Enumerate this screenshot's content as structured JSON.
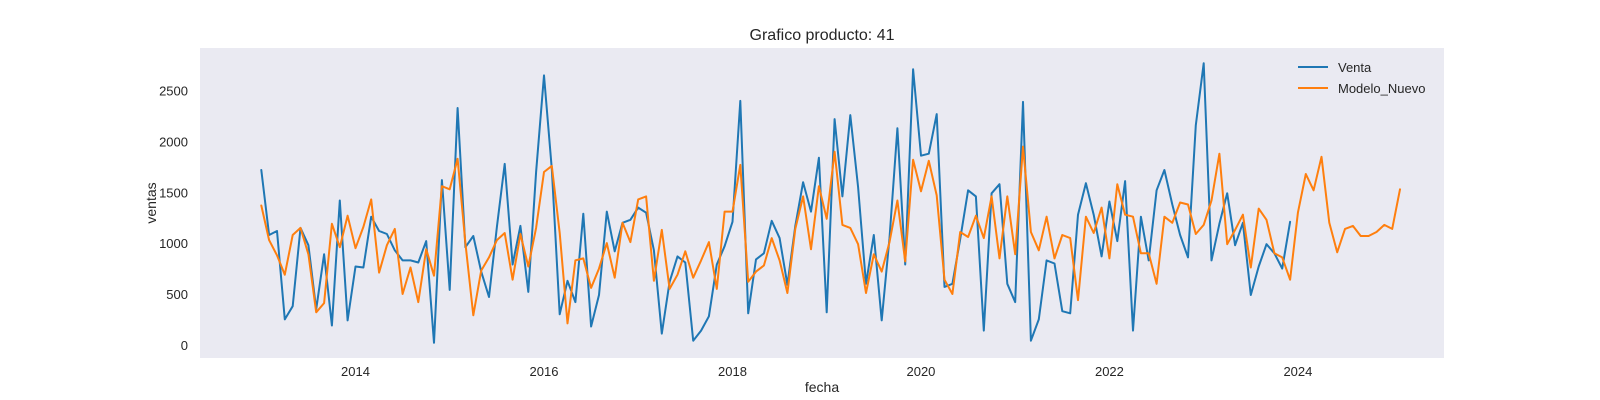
{
  "chart_data": {
    "type": "line",
    "title": "Grafico producto: 41",
    "xlabel": "fecha",
    "ylabel": "ventas",
    "xlim": [
      2012.35,
      2025.55
    ],
    "ylim": [
      -130,
      2920
    ],
    "xticks": [
      2014,
      2016,
      2018,
      2020,
      2022,
      2024
    ],
    "yticks": [
      0,
      500,
      1000,
      1500,
      2000,
      2500
    ],
    "grid": false,
    "legend_position": "top-right",
    "x_start": 2013.0,
    "x_step": 0.083333,
    "series": [
      {
        "name": "Venta",
        "color": "#1f77b4",
        "values": [
          1720,
          1080,
          1120,
          250,
          380,
          1150,
          980,
          350,
          890,
          190,
          1420,
          240,
          770,
          760,
          1260,
          1120,
          1090,
          930,
          830,
          830,
          810,
          1020,
          20,
          1620,
          540,
          2330,
          960,
          1070,
          720,
          470,
          1160,
          1780,
          790,
          1170,
          520,
          1700,
          2650,
          1730,
          300,
          630,
          420,
          1290,
          180,
          490,
          1310,
          920,
          1200,
          1230,
          1350,
          1300,
          930,
          110,
          620,
          870,
          810,
          40,
          140,
          280,
          790,
          970,
          1210,
          2400,
          310,
          840,
          900,
          1220,
          1050,
          590,
          1170,
          1600,
          1310,
          1840,
          320,
          2220,
          1460,
          2260,
          1550,
          600,
          1080,
          240,
          1050,
          2130,
          790,
          2710,
          1860,
          1880,
          2270,
          570,
          600,
          1040,
          1520,
          1460,
          140,
          1490,
          1580,
          600,
          420,
          2390,
          40,
          250,
          830,
          800,
          330,
          310,
          1280,
          1590,
          1280,
          870,
          1410,
          1020,
          1610,
          140,
          1260,
          830,
          1520,
          1720,
          1380,
          1080,
          860,
          2160,
          2770,
          830,
          1190,
          1490,
          980,
          1200,
          490,
          770,
          990,
          900,
          750,
          1210
        ],
        "x_start": 2013.0,
        "x_step": 0.083333
      },
      {
        "name": "Modelo_Nuevo",
        "color": "#ff7f0e",
        "values": [
          1370,
          1030,
          880,
          690,
          1080,
          1150,
          890,
          320,
          410,
          1190,
          960,
          1270,
          950,
          1160,
          1430,
          710,
          980,
          1140,
          500,
          760,
          420,
          940,
          680,
          1560,
          1530,
          1830,
          1000,
          290,
          730,
          860,
          1030,
          1100,
          640,
          1090,
          770,
          1150,
          1700,
          1760,
          1100,
          210,
          830,
          850,
          560,
          750,
          1000,
          660,
          1200,
          1010,
          1430,
          1460,
          630,
          1130,
          550,
          690,
          920,
          660,
          830,
          1010,
          550,
          1310,
          1310,
          1770,
          620,
          720,
          780,
          1050,
          830,
          510,
          1140,
          1460,
          940,
          1560,
          1240,
          1900,
          1180,
          1150,
          990,
          510,
          890,
          720,
          1010,
          1420,
          820,
          1820,
          1510,
          1810,
          1470,
          640,
          500,
          1110,
          1060,
          1270,
          1050,
          1460,
          850,
          1460,
          890,
          1950,
          1110,
          930,
          1260,
          850,
          1080,
          1050,
          440,
          1260,
          1100,
          1350,
          850,
          1580,
          1280,
          1260,
          900,
          900,
          600,
          1260,
          1200,
          1400,
          1380,
          1090,
          1180,
          1420,
          1880,
          990,
          1130,
          1280,
          760,
          1340,
          1230,
          900,
          860,
          640,
          1300,
          1680,
          1520,
          1850,
          1200,
          910,
          1140,
          1170,
          1070,
          1070,
          1110,
          1180,
          1140,
          1530
        ],
        "x_start": 2013.0,
        "x_step": 0.083333
      }
    ]
  }
}
